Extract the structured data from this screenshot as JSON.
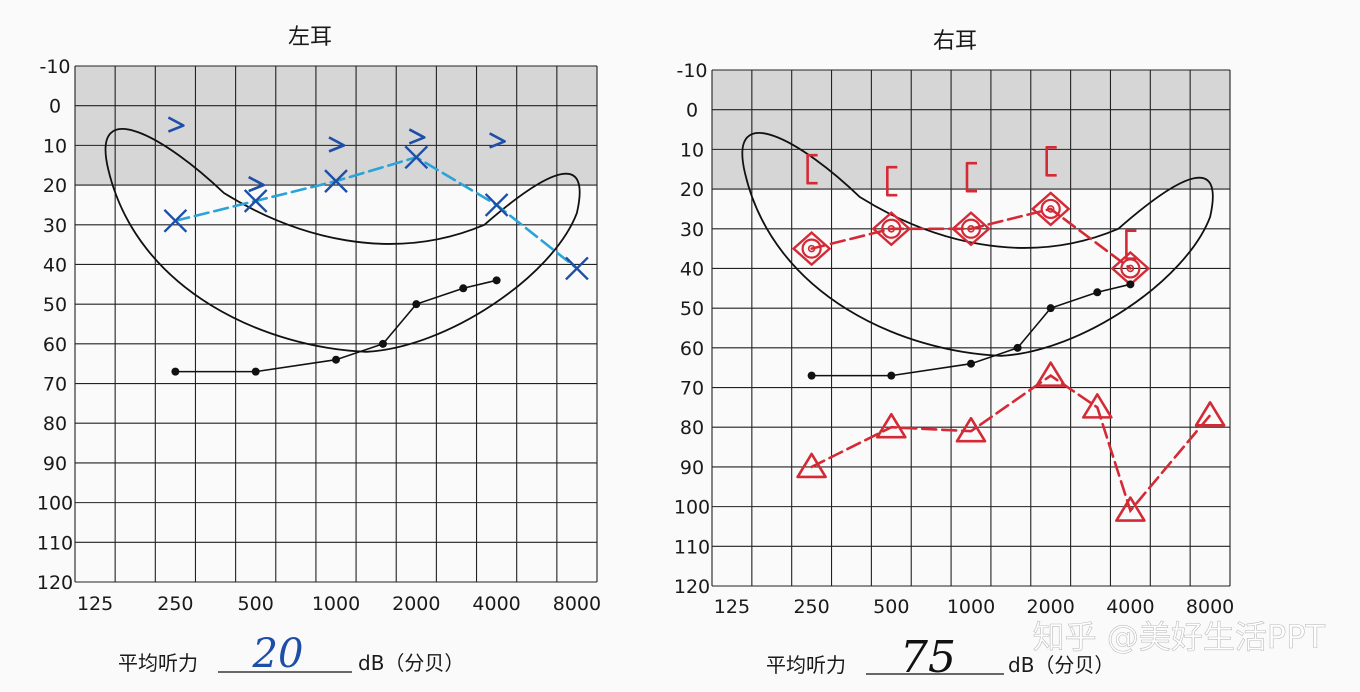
{
  "chart_data": [
    {
      "type": "line",
      "title": "左耳",
      "x_ticks": [
        "125",
        "250",
        "500",
        "1000",
        "2000",
        "4000",
        "8000"
      ],
      "y_ticks": [
        -10,
        0,
        10,
        20,
        30,
        40,
        50,
        60,
        70,
        80,
        90,
        100,
        110,
        120
      ],
      "ylim": [
        -10,
        120
      ],
      "y_inverted": true,
      "grid": true,
      "shaded_band_db": [
        -10,
        20
      ],
      "series": [
        {
          "symbol": "blue-x",
          "color": "#2aa3d8",
          "x": [
            250,
            500,
            1000,
            2000,
            4000,
            8000
          ],
          "y": [
            29,
            24,
            19,
            13,
            25,
            41
          ]
        },
        {
          "symbol": "blue-caret",
          "color": "#1d4fa8",
          "x": [
            250,
            500,
            1000,
            2000,
            4000
          ],
          "y": [
            5,
            20,
            10,
            8,
            9
          ]
        },
        {
          "symbol": "black-dot",
          "color": "#111111",
          "x": [
            250,
            500,
            1000,
            1500,
            2000,
            3000,
            4000
          ],
          "y": [
            67,
            67,
            64,
            60,
            50,
            46,
            44
          ]
        }
      ],
      "average_label": "平均听力",
      "average_value": "20",
      "unit": "dB（分贝）"
    },
    {
      "type": "line",
      "title": "右耳",
      "x_ticks": [
        "125",
        "250",
        "500",
        "1000",
        "2000",
        "4000",
        "8000"
      ],
      "y_ticks": [
        -10,
        0,
        10,
        20,
        30,
        40,
        50,
        60,
        70,
        80,
        90,
        100,
        110,
        120
      ],
      "ylim": [
        -10,
        120
      ],
      "y_inverted": true,
      "grid": true,
      "shaded_band_db": [
        -10,
        20
      ],
      "series": [
        {
          "symbol": "red-circle-diamond",
          "color": "#d42a36",
          "x": [
            250,
            500,
            1000,
            2000,
            4000
          ],
          "y": [
            35,
            30,
            30,
            25,
            40
          ]
        },
        {
          "symbol": "red-bracket",
          "color": "#d42a36",
          "x": [
            250,
            500,
            1000,
            2000,
            4000
          ],
          "y": [
            15,
            18,
            17,
            13,
            34
          ]
        },
        {
          "symbol": "red-triangle",
          "color": "#d42a36",
          "x": [
            250,
            500,
            1000,
            2000,
            3000,
            4000,
            8000
          ],
          "y": [
            90,
            80,
            81,
            67,
            75,
            101,
            77
          ]
        },
        {
          "symbol": "black-dot",
          "color": "#111111",
          "x": [
            250,
            500,
            1000,
            1500,
            2000,
            3000,
            4000
          ],
          "y": [
            67,
            67,
            64,
            60,
            50,
            46,
            44
          ]
        }
      ],
      "average_label": "平均听力",
      "average_value": "75",
      "unit": "dB（分贝）"
    }
  ],
  "watermark": "知乎 @美好生活PPT",
  "colors": {
    "grid": "#222222",
    "band": "#d6d6d6",
    "blue": "#2aa3d8",
    "blue_dark": "#1d4fa8",
    "red": "#d42a36",
    "black": "#111111"
  }
}
